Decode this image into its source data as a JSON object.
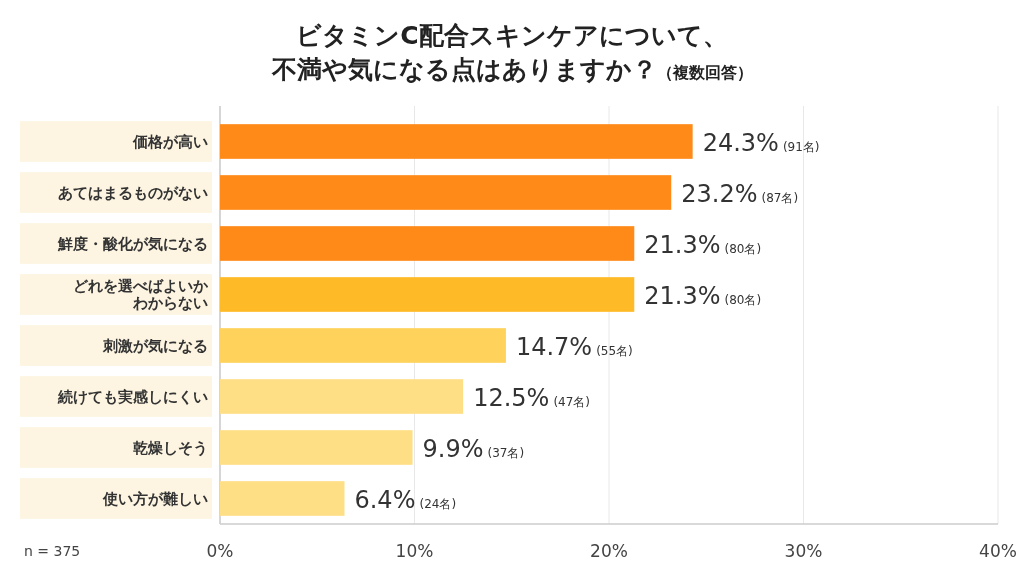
{
  "chart_data": {
    "type": "bar",
    "orientation": "horizontal",
    "title": "ビタミンC配合スキンケアについて、不満や気になる点はありますか？",
    "subtitle": "（複数回答）",
    "categories": [
      "価格が高い",
      "あてはまるものがない",
      "鮮度・酸化が気になる",
      "どれを選べばよいかわからない",
      "刺激が気になる",
      "続けても実感しにくい",
      "乾燥しそう",
      "使い方が難しい"
    ],
    "values": [
      24.3,
      23.2,
      21.3,
      21.3,
      14.7,
      12.5,
      9.9,
      6.4
    ],
    "colors": [
      "#ff8a17",
      "#ff8a17",
      "#ff8a17",
      "#ffbb27",
      "#ffd25c",
      "#ffdf86",
      "#ffdf86",
      "#ffdf86"
    ],
    "value_labels": [
      "24.3% (91名)",
      "23.2% (87名)",
      "21.3% (80名)",
      "21.3% (80名)",
      "14.7% (55名)",
      "12.5% (47名)",
      "9.9% (37名)",
      "6.4% (24名)"
    ],
    "xlim": [
      0,
      40
    ],
    "xticks": [
      {
        "value": 0,
        "label": "0%"
      },
      {
        "value": 10,
        "label": "10%"
      },
      {
        "value": 20,
        "label": "20%"
      },
      {
        "value": 30,
        "label": "30%"
      },
      {
        "value": 40,
        "label": "40%"
      }
    ],
    "grid": "x",
    "annotations": [
      "n = 375"
    ]
  }
}
